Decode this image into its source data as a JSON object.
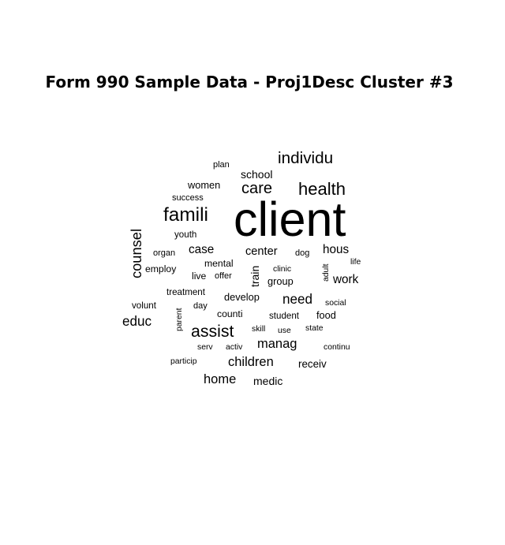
{
  "chart_data": {
    "type": "wordcloud",
    "title": "Form 990 Sample Data - Proj1Desc Cluster #3",
    "color": "#000000",
    "words": [
      {
        "text": "client",
        "size": 10
      },
      {
        "text": "famili",
        "size": 4
      },
      {
        "text": "health",
        "size": 3.6
      },
      {
        "text": "individu",
        "size": 3.4
      },
      {
        "text": "care",
        "size": 3.3
      },
      {
        "text": "assist",
        "size": 3.5
      },
      {
        "text": "counsel",
        "size": 3
      },
      {
        "text": "educ",
        "size": 2.8
      },
      {
        "text": "need",
        "size": 2.8
      },
      {
        "text": "children",
        "size": 2.7
      },
      {
        "text": "home",
        "size": 2.7
      },
      {
        "text": "manag",
        "size": 2.7
      },
      {
        "text": "hous",
        "size": 2.5
      },
      {
        "text": "work",
        "size": 2.5
      },
      {
        "text": "case",
        "size": 2.5
      },
      {
        "text": "center",
        "size": 2.4
      },
      {
        "text": "school",
        "size": 2.3
      },
      {
        "text": "train",
        "size": 2.3
      },
      {
        "text": "medic",
        "size": 2.3
      },
      {
        "text": "receiv",
        "size": 2.2
      },
      {
        "text": "women",
        "size": 2.1
      },
      {
        "text": "develop",
        "size": 2.1
      },
      {
        "text": "food",
        "size": 2.1
      },
      {
        "text": "group",
        "size": 2.1
      },
      {
        "text": "employ",
        "size": 2
      },
      {
        "text": "mental",
        "size": 2
      },
      {
        "text": "live",
        "size": 2
      },
      {
        "text": "counti",
        "size": 2
      },
      {
        "text": "student",
        "size": 1.9
      },
      {
        "text": "volunt",
        "size": 1.9
      },
      {
        "text": "youth",
        "size": 1.9
      },
      {
        "text": "treatment",
        "size": 1.9
      },
      {
        "text": "organ",
        "size": 1.8
      },
      {
        "text": "offer",
        "size": 1.8
      },
      {
        "text": "dog",
        "size": 1.8
      },
      {
        "text": "day",
        "size": 1.8
      },
      {
        "text": "plan",
        "size": 1.8
      },
      {
        "text": "success",
        "size": 1.8
      },
      {
        "text": "clinic",
        "size": 1.7
      },
      {
        "text": "life",
        "size": 1.7
      },
      {
        "text": "adult",
        "size": 1.7
      },
      {
        "text": "social",
        "size": 1.7
      },
      {
        "text": "skill",
        "size": 1.7
      },
      {
        "text": "use",
        "size": 1.7
      },
      {
        "text": "state",
        "size": 1.7
      },
      {
        "text": "parent",
        "size": 1.7
      },
      {
        "text": "serv",
        "size": 1.7
      },
      {
        "text": "activ",
        "size": 1.7
      },
      {
        "text": "continu",
        "size": 1.7
      },
      {
        "text": "particip",
        "size": 1.7
      }
    ]
  }
}
